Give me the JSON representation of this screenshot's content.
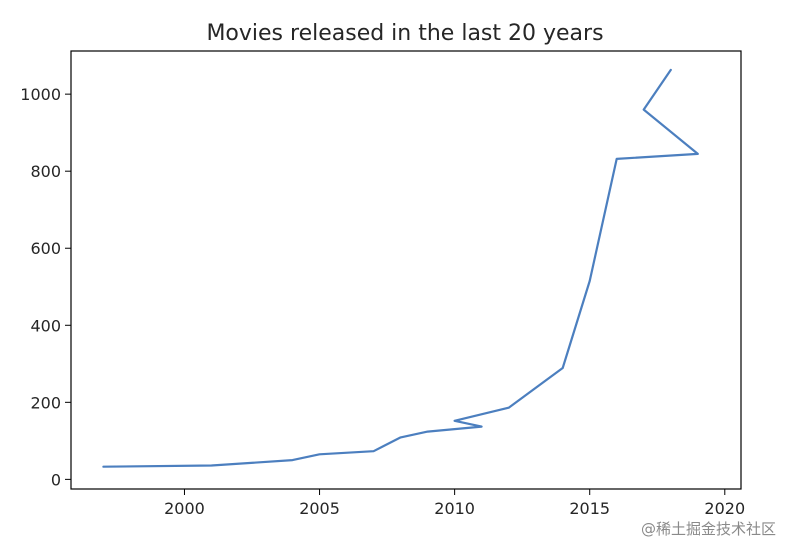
{
  "chart_data": {
    "type": "line",
    "title": "Movies released in the last 20 years",
    "xlabel": "",
    "ylabel": "",
    "xlim": [
      1995.8,
      2020.6
    ],
    "ylim": [
      -25,
      1112
    ],
    "x_ticks": [
      2000,
      2005,
      2010,
      2015,
      2020
    ],
    "y_ticks": [
      0,
      200,
      400,
      600,
      800,
      1000
    ],
    "grid": false,
    "legend": "none",
    "series": [
      {
        "color": "#4c7fbf",
        "x": [
          1997,
          2001,
          2004,
          2005,
          2007,
          2008,
          2009,
          2011,
          2010,
          2012,
          2014,
          2015,
          2016,
          2019,
          2017,
          2018
        ],
        "y": [
          33,
          36,
          50,
          65,
          73,
          109,
          124,
          137,
          152,
          186,
          289,
          515,
          832,
          845,
          960,
          1063
        ]
      }
    ]
  },
  "watermark": "@稀土掘金技术社区"
}
